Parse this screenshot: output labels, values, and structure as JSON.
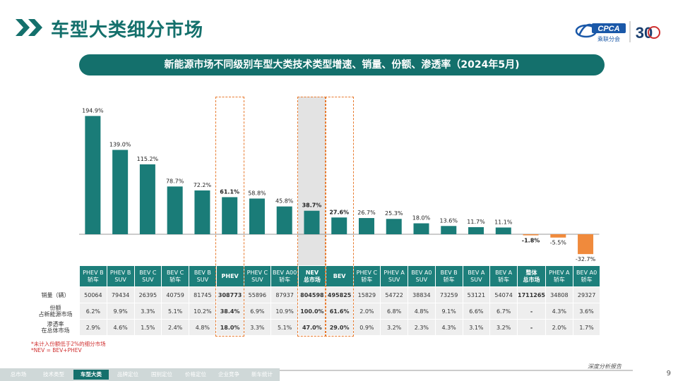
{
  "header": {
    "title": "车型大类细分市场",
    "logo_text": "CPCA",
    "logo_sub": "乘联分会",
    "logo_anniv": "30"
  },
  "banner": {
    "text": "新能源市场不同级别车型大类技术类型增速、销量、份额、渗透率（2024年5月)"
  },
  "chart_data": {
    "type": "bar",
    "categories": [
      "PHEV B 轿车",
      "PHEV B SUV",
      "BEV C SUV",
      "BEV C 轿车",
      "BEV B SUV",
      "PHEV",
      "PHEV C SUV",
      "BEV A00 轿车",
      "NEV 总市场",
      "BEV",
      "PHEV C 轿车",
      "PHEV A SUV",
      "BEV A0 SUV",
      "BEV B 轿车",
      "BEV A SUV",
      "BEV A 轿车",
      "整体 总市场",
      "PHEV A 轿车",
      "BEV A0 轿车"
    ],
    "values": [
      194.9,
      139.0,
      115.2,
      78.7,
      72.2,
      61.1,
      58.8,
      45.8,
      38.7,
      27.6,
      26.7,
      25.3,
      18.0,
      13.6,
      11.7,
      11.1,
      -1.8,
      -5.5,
      -32.7
    ],
    "value_labels": [
      "194.9%",
      "139.0%",
      "115.2%",
      "78.7%",
      "72.2%",
      "61.1%",
      "58.8%",
      "45.8%",
      "38.7%",
      "27.6%",
      "26.7%",
      "25.3%",
      "18.0%",
      "13.6%",
      "11.7%",
      "11.1%",
      "-1.8%",
      "-5.5%",
      "-32.7%"
    ],
    "bold_labels": [
      false,
      false,
      false,
      false,
      false,
      true,
      false,
      false,
      true,
      true,
      false,
      false,
      false,
      false,
      false,
      false,
      true,
      false,
      false
    ],
    "colors": {
      "positive": "#1a7c78",
      "negative": "#f08a3c",
      "highlight_border": "#e87a2e",
      "highlight_fill": "#d0d0d0"
    },
    "ylim": [
      -40,
      200
    ]
  },
  "table": {
    "headers": [
      "PHEV B\n轿车",
      "PHEV B\nSUV",
      "BEV C\nSUV",
      "BEV C\n轿车",
      "BEV B\nSUV",
      "PHEV",
      "PHEV C\nSUV",
      "BEV A00\n轿车",
      "NEV\n总市场",
      "BEV",
      "PHEV C\n轿车",
      "PHEV A\nSUV",
      "BEV A0\nSUV",
      "BEV B\n轿车",
      "BEV A\nSUV",
      "BEV A\n轿车",
      "整体\n总市场",
      "PHEV A\n轿车",
      "BEV A0\n轿车"
    ],
    "rows": [
      {
        "label": "销量（辆）",
        "cells": [
          "50064",
          "79434",
          "26395",
          "40759",
          "81745",
          "308773",
          "55896",
          "87937",
          "804598",
          "495825",
          "15829",
          "54722",
          "38834",
          "73259",
          "53121",
          "54074",
          "1711265",
          "34808",
          "29327"
        ]
      },
      {
        "label": "份额\n占新能源市场",
        "cells": [
          "6.2%",
          "9.9%",
          "3.3%",
          "5.1%",
          "10.2%",
          "38.4%",
          "6.9%",
          "10.9%",
          "100.0%",
          "61.6%",
          "2.0%",
          "6.8%",
          "4.8%",
          "9.1%",
          "6.6%",
          "6.7%",
          "-",
          "4.3%",
          "3.6%"
        ]
      },
      {
        "label": "渗透率\n在总体市场",
        "cells": [
          "2.9%",
          "4.6%",
          "1.5%",
          "2.4%",
          "4.8%",
          "18.0%",
          "3.3%",
          "5.1%",
          "47.0%",
          "29.0%",
          "0.9%",
          "3.2%",
          "2.3%",
          "4.3%",
          "3.1%",
          "3.2%",
          "-",
          "2.0%",
          "1.7%"
        ]
      }
    ]
  },
  "footnotes": [
    "*未计入份额低于2%的细分市场",
    "*NEV = BEV+PHEV"
  ],
  "nav": {
    "items": [
      "总市场",
      "技术类型",
      "车型大类",
      "品牌定位",
      "国别定位",
      "价格定位",
      "企业竞争",
      "新车统计"
    ],
    "active_index": 2
  },
  "footer": {
    "label": "深度分析报告",
    "page": "9"
  }
}
